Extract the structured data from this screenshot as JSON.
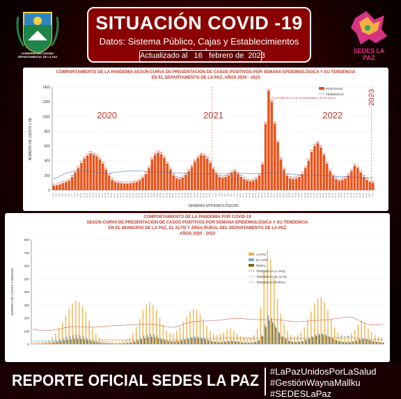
{
  "header": {
    "title": "SITUACIÓN COVID -19",
    "subtitle": "Datos: Sistema Público, Cajas y Establecimientos Privados",
    "updated": "Actualizado al   16   febrero de  2023",
    "left_logo_text": "GOBIERNO AUTÓNOMO DEPARTAMENTAL DE LA PAZ",
    "right_logo_text": "SEDES LA PAZ"
  },
  "footer": {
    "report": "REPORTE OFICIAL SEDES LA PAZ",
    "hashtags": [
      "#LaPazUnidosPorLaSalud",
      "#GestiónWaynaMallku",
      "#SEDESLaPaz"
    ]
  },
  "chart_data": [
    {
      "type": "bar",
      "title": "COMPORTAMIENTO DE LA PANDEMIA SEGÚN CURVA DE PRESENTACIÓN DE CASOS POSITIVOS POR SEMANA EPIDEMIOLÓGICA Y SU TENDENCIA",
      "subtitle": "EN EL DEPARTAMENTO DE LA PAZ, AÑOS 2020 - 2023",
      "xlabel": "SEMANAS EPIDEMIOLÓGICAS",
      "ylabel": "NÚMERO DE CASOS x SE.",
      "ylim": [
        0,
        1400
      ],
      "yticks": [
        0,
        200,
        400,
        600,
        800,
        1000,
        1200,
        1400
      ],
      "legend": [
        "POSITIVOS",
        "TENDENCIA"
      ],
      "legend_position": "top-right",
      "year_labels": [
        "2020",
        "2021",
        "2022",
        "2023"
      ],
      "annotation": "PICO MÁS ALTO DE LA PANDEMIA * SE 02 (2022)",
      "bar_color": "#e8541c",
      "trend_color": "#3a6fb5",
      "series": [
        {
          "name": "POSITIVOS",
          "values": [
            60,
            70,
            80,
            95,
            110,
            130,
            180,
            240,
            300,
            370,
            430,
            470,
            500,
            480,
            460,
            420,
            360,
            280,
            200,
            140,
            110,
            100,
            95,
            90,
            90,
            95,
            100,
            110,
            130,
            170,
            220,
            300,
            420,
            480,
            510,
            490,
            440,
            360,
            280,
            200,
            160,
            150,
            170,
            210,
            260,
            320,
            390,
            440,
            480,
            470,
            430,
            370,
            290,
            220,
            180,
            170,
            180,
            200,
            240,
            260,
            220,
            180,
            150,
            130,
            120,
            130,
            150,
            200,
            350,
            900,
            1350,
            1200,
            900,
            650,
            420,
            280,
            200,
            160,
            150,
            160,
            180,
            220,
            300,
            400,
            520,
            600,
            640,
            580,
            480,
            360,
            260,
            190,
            150,
            130,
            140,
            160,
            200,
            260,
            330,
            300,
            240,
            180,
            140,
            110,
            100
          ]
        },
        {
          "name": "TENDENCIA",
          "values": [
            150,
            170,
            190,
            210,
            230,
            240,
            250,
            255,
            258,
            260,
            258,
            255,
            250,
            245,
            240,
            235,
            232,
            230,
            232,
            235,
            240,
            245,
            250,
            255,
            258,
            260,
            262,
            262,
            260,
            258,
            255,
            252,
            250,
            248,
            246,
            244,
            242,
            240,
            238,
            236,
            234,
            232,
            230,
            228,
            226,
            224,
            222,
            220,
            220,
            220,
            221,
            222,
            223,
            224,
            225,
            226,
            227,
            228,
            228,
            228,
            228,
            228,
            227,
            226,
            225,
            224,
            224,
            224,
            226,
            230,
            236,
            240,
            238,
            234,
            230,
            226,
            222,
            218,
            214,
            210,
            207,
            204,
            202,
            200,
            200,
            200,
            200,
            198,
            196,
            194,
            192,
            190,
            188,
            186,
            184,
            182,
            180,
            178,
            176,
            174,
            172,
            170,
            168,
            166,
            164
          ]
        }
      ]
    },
    {
      "type": "bar",
      "title": "COMPORTAMIENTO DE LA PANDEMIA POR COVID-19",
      "subtitle": "SEGÚN CURVA DE PRESENTACIÓN DE CASOS POSITIVOS POR SEMANA EPIDEMIOLÓGICA Y SU TENDENCIA",
      "subtitle2": "EN EL  MUNICIPIO DE LA PAZ, EL ALTO Y ÁREA RURAL DEL DEPARTAMENTO DE LA PAZ",
      "subtitle3": "AÑOS 2020 - 2023",
      "ylabel": "NÚMERO DE CASOS x SEMANA",
      "ylim": [
        0,
        800
      ],
      "yticks": [
        0,
        100,
        200,
        300,
        400,
        500,
        600,
        700,
        800
      ],
      "legend": [
        "LA PAZ",
        "EL ALTO",
        "RURAL",
        "TENDENCIA (LA PAZ)",
        "TENDENCIA (EL ALTO)",
        "TENDENCIA (RURAL)"
      ],
      "legend_position": "top-right",
      "colors": {
        "la_paz": "#f5b041",
        "el_alto": "#7fa6c9",
        "rural": "#7d6608",
        "trend_lp": "#c0392b",
        "trend_ea": "#5dade2",
        "trend_rural": "#e67e22"
      },
      "series": [
        {
          "name": "LA PAZ",
          "values": [
            5,
            8,
            10,
            15,
            20,
            30,
            50,
            80,
            120,
            170,
            220,
            270,
            310,
            330,
            320,
            290,
            240,
            180,
            120,
            80,
            50,
            30,
            20,
            15,
            12,
            12,
            15,
            20,
            30,
            50,
            80,
            130,
            190,
            260,
            300,
            320,
            300,
            260,
            200,
            140,
            100,
            80,
            80,
            100,
            130,
            170,
            210,
            250,
            270,
            260,
            230,
            190,
            140,
            100,
            80,
            70,
            75,
            90,
            110,
            120,
            100,
            80,
            60,
            50,
            45,
            50,
            70,
            120,
            280,
            560,
            720,
            650,
            500,
            350,
            230,
            150,
            100,
            70,
            60,
            70,
            90,
            130,
            190,
            250,
            310,
            350,
            360,
            320,
            260,
            190,
            130,
            90,
            70,
            60,
            65,
            80,
            110,
            150,
            180,
            160,
            120,
            90,
            70,
            55,
            50
          ]
        },
        {
          "name": "EL ALTO",
          "values": [
            2,
            3,
            4,
            5,
            7,
            10,
            15,
            25,
            35,
            45,
            55,
            65,
            70,
            72,
            68,
            60,
            50,
            38,
            28,
            20,
            14,
            10,
            8,
            6,
            5,
            5,
            6,
            8,
            10,
            15,
            22,
            35,
            50,
            65,
            75,
            80,
            75,
            65,
            50,
            38,
            28,
            22,
            22,
            26,
            32,
            40,
            48,
            55,
            60,
            58,
            52,
            44,
            34,
            26,
            20,
            18,
            18,
            22,
            26,
            28,
            24,
            20,
            16,
            13,
            12,
            13,
            18,
            30,
            70,
            150,
            220,
            200,
            150,
            100,
            65,
            42,
            28,
            20,
            17,
            19,
            24,
            34,
            48,
            62,
            75,
            82,
            84,
            75,
            62,
            46,
            32,
            22,
            18,
            16,
            17,
            20,
            28,
            38,
            44,
            40,
            30,
            22,
            18,
            14,
            12
          ]
        },
        {
          "name": "RURAL",
          "values": [
            1,
            1,
            2,
            3,
            4,
            6,
            9,
            14,
            20,
            26,
            32,
            36,
            40,
            42,
            40,
            36,
            30,
            22,
            16,
            11,
            8,
            6,
            5,
            4,
            3,
            3,
            4,
            5,
            7,
            10,
            15,
            24,
            34,
            44,
            52,
            56,
            52,
            44,
            34,
            26,
            20,
            16,
            16,
            19,
            24,
            30,
            36,
            42,
            45,
            44,
            40,
            34,
            26,
            20,
            16,
            14,
            14,
            17,
            20,
            22,
            19,
            16,
            13,
            11,
            10,
            11,
            15,
            26,
            60,
            130,
            180,
            165,
            125,
            85,
            55,
            36,
            24,
            17,
            14,
            16,
            20,
            28,
            40,
            52,
            64,
            70,
            72,
            64,
            52,
            40,
            28,
            20,
            16,
            14,
            15,
            18,
            24,
            32,
            38,
            34,
            26,
            20,
            16,
            12,
            10
          ]
        }
      ]
    }
  ]
}
